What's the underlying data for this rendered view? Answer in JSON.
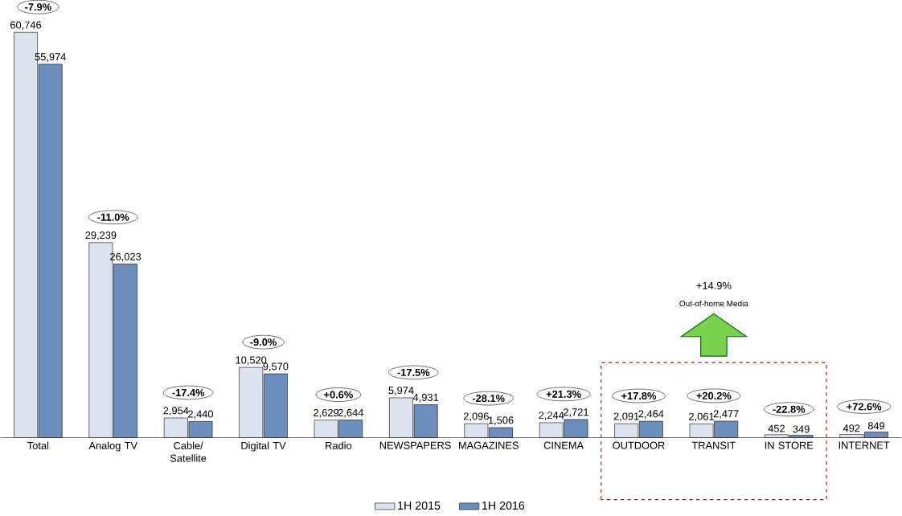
{
  "chart_data": {
    "type": "bar",
    "categories": [
      "Total",
      "Analog TV",
      "Cable/ Satellite",
      "Digital TV",
      "Radio",
      "NEWSPAPERS",
      "MAGAZINES",
      "CINEMA",
      "OUTDOOR",
      "TRANSIT",
      "IN STORE",
      "INTERNET"
    ],
    "series": [
      {
        "name": "1H 2015",
        "color": "#dce3ee",
        "values": [
          60746,
          29239,
          2954,
          10520,
          2629,
          5974,
          2096,
          2244,
          2091,
          2061,
          452,
          492
        ],
        "value_labels": [
          "60,746",
          "29,239",
          "2,954",
          "10,520",
          "2,629",
          "5,974",
          "2,096",
          "2,244",
          "2,091",
          "2,061",
          "452",
          "492"
        ]
      },
      {
        "name": "1H 2016",
        "color": "#6c8ebf",
        "values": [
          55974,
          26023,
          2440,
          9570,
          2644,
          4931,
          1506,
          2721,
          2464,
          2477,
          349,
          849
        ],
        "value_labels": [
          "55,974",
          "26,023",
          "2,440",
          "9,570",
          "2,644",
          "4,931",
          "1,506",
          "2,721",
          "2,464",
          "2,477",
          "349",
          "849"
        ]
      }
    ],
    "annotations": [
      "-7.9%",
      "-11.0%",
      "-17.4%",
      "-9.0%",
      "+0.6%",
      "-17.5%",
      "-28.1%",
      "+21.3%",
      "+17.8%",
      "+20.2%",
      "-22.8%",
      "+72.6%",
      "+14.9%",
      "Out-of-home Media"
    ],
    "legend": "bottom"
  }
}
